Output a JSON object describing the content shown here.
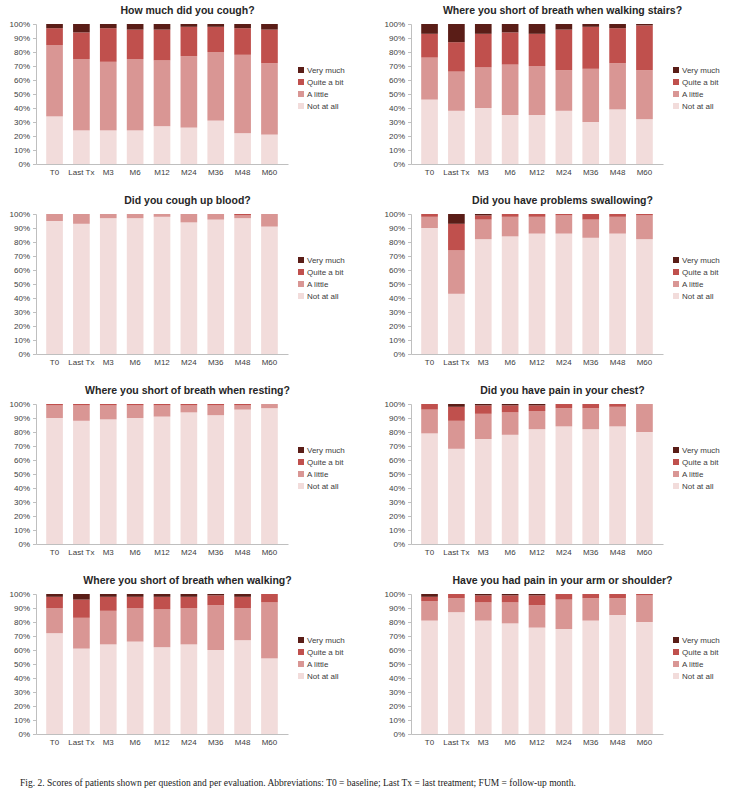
{
  "chart_data": [
    {
      "type": "bar",
      "stacked": true,
      "grid": false,
      "legend": "right",
      "title": "How much did you cough?",
      "categories": [
        "T0",
        "Last Tx",
        "M3",
        "M6",
        "M12",
        "M24",
        "M36",
        "M48",
        "M60"
      ],
      "ylim": [
        0,
        100
      ],
      "yticks": [
        {
          "value": 0,
          "label": "0%"
        },
        {
          "value": 10,
          "label": "10%"
        },
        {
          "value": 20,
          "label": "20%"
        },
        {
          "value": 30,
          "label": "30%"
        },
        {
          "value": 40,
          "label": "40%"
        },
        {
          "value": 50,
          "label": "50%"
        },
        {
          "value": 60,
          "label": "60%"
        },
        {
          "value": 70,
          "label": "70%"
        },
        {
          "value": 80,
          "label": "80%"
        },
        {
          "value": 90,
          "label": "90%"
        },
        {
          "value": 100,
          "label": "100%"
        }
      ],
      "series": [
        {
          "name": "Not at all",
          "color": "#f2dcdb",
          "values": [
            34,
            24,
            24,
            24,
            27,
            26,
            31,
            22,
            21
          ]
        },
        {
          "name": "A little",
          "color": "#d99694",
          "values": [
            51,
            51,
            49,
            51,
            47,
            51,
            49,
            56,
            51
          ]
        },
        {
          "name": "Quite a bit",
          "color": "#c0504d",
          "values": [
            12,
            19,
            24,
            21,
            22,
            21,
            18,
            19,
            24
          ]
        },
        {
          "name": "Very much",
          "color": "#5a1d17",
          "values": [
            3,
            6,
            3,
            4,
            4,
            2,
            2,
            3,
            4
          ]
        }
      ]
    },
    {
      "type": "bar",
      "stacked": true,
      "grid": false,
      "legend": "right",
      "title": "Where you short of breath when walking stairs?",
      "categories": [
        "T0",
        "Last Tx",
        "M3",
        "M6",
        "M12",
        "M24",
        "M36",
        "M48",
        "M60"
      ],
      "ylim": [
        0,
        100
      ],
      "yticks": [
        {
          "value": 0,
          "label": "0%"
        },
        {
          "value": 10,
          "label": "10%"
        },
        {
          "value": 20,
          "label": "20%"
        },
        {
          "value": 30,
          "label": "30%"
        },
        {
          "value": 40,
          "label": "40%"
        },
        {
          "value": 50,
          "label": "50%"
        },
        {
          "value": 60,
          "label": "60%"
        },
        {
          "value": 70,
          "label": "70%"
        },
        {
          "value": 80,
          "label": "80%"
        },
        {
          "value": 90,
          "label": "90%"
        },
        {
          "value": 100,
          "label": "100%"
        }
      ],
      "series": [
        {
          "name": "Not at all",
          "color": "#f2dcdb",
          "values": [
            46,
            38,
            40,
            35,
            35,
            38,
            30,
            39,
            32
          ]
        },
        {
          "name": "A little",
          "color": "#d99694",
          "values": [
            30,
            28,
            29,
            36,
            35,
            29,
            38,
            33,
            35
          ]
        },
        {
          "name": "Quite a bit",
          "color": "#c0504d",
          "values": [
            17,
            21,
            24,
            23,
            23,
            29,
            30,
            25,
            32
          ]
        },
        {
          "name": "Very much",
          "color": "#5a1d17",
          "values": [
            7,
            13,
            7,
            6,
            7,
            4,
            2,
            3,
            1
          ]
        }
      ]
    },
    {
      "type": "bar",
      "stacked": true,
      "grid": false,
      "legend": "right",
      "title": "Did you cough up blood?",
      "categories": [
        "T0",
        "Last Tx",
        "M3",
        "M6",
        "M12",
        "M24",
        "M36",
        "M48",
        "M60"
      ],
      "ylim": [
        0,
        100
      ],
      "yticks": [
        {
          "value": 0,
          "label": "0%"
        },
        {
          "value": 10,
          "label": "10%"
        },
        {
          "value": 20,
          "label": "20%"
        },
        {
          "value": 30,
          "label": "30%"
        },
        {
          "value": 40,
          "label": "40%"
        },
        {
          "value": 50,
          "label": "50%"
        },
        {
          "value": 60,
          "label": "60%"
        },
        {
          "value": 70,
          "label": "70%"
        },
        {
          "value": 80,
          "label": "80%"
        },
        {
          "value": 90,
          "label": "90%"
        },
        {
          "value": 100,
          "label": "100%"
        }
      ],
      "series": [
        {
          "name": "Not at all",
          "color": "#f2dcdb",
          "values": [
            95,
            93,
            97,
            97,
            98,
            94,
            96,
            97,
            91
          ]
        },
        {
          "name": "A little",
          "color": "#d99694",
          "values": [
            5,
            7,
            3,
            3,
            2,
            6,
            4,
            2,
            9
          ]
        },
        {
          "name": "Quite a bit",
          "color": "#c0504d",
          "values": [
            0,
            0,
            0,
            0,
            0,
            0,
            0,
            1,
            0
          ]
        },
        {
          "name": "Very much",
          "color": "#5a1d17",
          "values": [
            0,
            0,
            0,
            0,
            0,
            0,
            0,
            0,
            0
          ]
        }
      ]
    },
    {
      "type": "bar",
      "stacked": true,
      "grid": false,
      "legend": "right",
      "title": "Did you have problems swallowing?",
      "categories": [
        "T0",
        "Last Tx",
        "M3",
        "M6",
        "M12",
        "M24",
        "M36",
        "M48",
        "M60"
      ],
      "ylim": [
        0,
        100
      ],
      "yticks": [
        {
          "value": 0,
          "label": "0%"
        },
        {
          "value": 10,
          "label": "10%"
        },
        {
          "value": 20,
          "label": "20%"
        },
        {
          "value": 30,
          "label": "30%"
        },
        {
          "value": 40,
          "label": "40%"
        },
        {
          "value": 50,
          "label": "50%"
        },
        {
          "value": 60,
          "label": "60%"
        },
        {
          "value": 70,
          "label": "70%"
        },
        {
          "value": 80,
          "label": "80%"
        },
        {
          "value": 90,
          "label": "90%"
        },
        {
          "value": 100,
          "label": "100%"
        }
      ],
      "series": [
        {
          "name": "Not at all",
          "color": "#f2dcdb",
          "values": [
            90,
            43,
            82,
            84,
            86,
            86,
            83,
            86,
            82
          ]
        },
        {
          "name": "A little",
          "color": "#d99694",
          "values": [
            8,
            31,
            14,
            14,
            12,
            13,
            13,
            12,
            17
          ]
        },
        {
          "name": "Quite a bit",
          "color": "#c0504d",
          "values": [
            2,
            19,
            3,
            2,
            2,
            1,
            4,
            2,
            1
          ]
        },
        {
          "name": "Very much",
          "color": "#5a1d17",
          "values": [
            0,
            7,
            1,
            0,
            0,
            0,
            0,
            0,
            0
          ]
        }
      ]
    },
    {
      "type": "bar",
      "stacked": true,
      "grid": false,
      "legend": "right",
      "title": "Where you short of breath when resting?",
      "categories": [
        "T0",
        "Last Tx",
        "M3",
        "M6",
        "M12",
        "M24",
        "M36",
        "M48",
        "M60"
      ],
      "ylim": [
        0,
        100
      ],
      "yticks": [
        {
          "value": 0,
          "label": "0%"
        },
        {
          "value": 10,
          "label": "10%"
        },
        {
          "value": 20,
          "label": "20%"
        },
        {
          "value": 30,
          "label": "30%"
        },
        {
          "value": 40,
          "label": "40%"
        },
        {
          "value": 50,
          "label": "50%"
        },
        {
          "value": 60,
          "label": "60%"
        },
        {
          "value": 70,
          "label": "70%"
        },
        {
          "value": 80,
          "label": "80%"
        },
        {
          "value": 90,
          "label": "90%"
        },
        {
          "value": 100,
          "label": "100%"
        }
      ],
      "series": [
        {
          "name": "Not at all",
          "color": "#f2dcdb",
          "values": [
            90,
            88,
            89,
            90,
            91,
            94,
            92,
            96,
            97
          ]
        },
        {
          "name": "A little",
          "color": "#d99694",
          "values": [
            9,
            11,
            10,
            9,
            8,
            5,
            7,
            3,
            3
          ]
        },
        {
          "name": "Quite a bit",
          "color": "#c0504d",
          "values": [
            1,
            1,
            1,
            1,
            1,
            1,
            1,
            1,
            0
          ]
        },
        {
          "name": "Very much",
          "color": "#5a1d17",
          "values": [
            0,
            0,
            0,
            0,
            0,
            0,
            0,
            0,
            0
          ]
        }
      ]
    },
    {
      "type": "bar",
      "stacked": true,
      "grid": false,
      "legend": "right",
      "title": "Did you have pain in your chest?",
      "categories": [
        "T0",
        "Last Tx",
        "M3",
        "M6",
        "M12",
        "M24",
        "M36",
        "M48",
        "M60"
      ],
      "ylim": [
        0,
        100
      ],
      "yticks": [
        {
          "value": 0,
          "label": "0%"
        },
        {
          "value": 10,
          "label": "10%"
        },
        {
          "value": 20,
          "label": "20%"
        },
        {
          "value": 30,
          "label": "30%"
        },
        {
          "value": 40,
          "label": "40%"
        },
        {
          "value": 50,
          "label": "50%"
        },
        {
          "value": 60,
          "label": "60%"
        },
        {
          "value": 70,
          "label": "70%"
        },
        {
          "value": 80,
          "label": "80%"
        },
        {
          "value": 90,
          "label": "90%"
        },
        {
          "value": 100,
          "label": "100%"
        }
      ],
      "series": [
        {
          "name": "Not at all",
          "color": "#f2dcdb",
          "values": [
            79,
            68,
            75,
            78,
            82,
            84,
            82,
            84,
            80
          ]
        },
        {
          "name": "A little",
          "color": "#d99694",
          "values": [
            17,
            20,
            18,
            16,
            13,
            13,
            15,
            14,
            20
          ]
        },
        {
          "name": "Quite a bit",
          "color": "#c0504d",
          "values": [
            4,
            10,
            6,
            5,
            4,
            3,
            3,
            2,
            0
          ]
        },
        {
          "name": "Very much",
          "color": "#5a1d17",
          "values": [
            0,
            2,
            1,
            1,
            1,
            0,
            0,
            0,
            0
          ]
        }
      ]
    },
    {
      "type": "bar",
      "stacked": true,
      "grid": false,
      "legend": "right",
      "title": "Where you short of breath when walking?",
      "categories": [
        "T0",
        "Last Tx",
        "M3",
        "M6",
        "M12",
        "M24",
        "M36",
        "M48",
        "M60"
      ],
      "ylim": [
        0,
        100
      ],
      "yticks": [
        {
          "value": 0,
          "label": "0%"
        },
        {
          "value": 10,
          "label": "10%"
        },
        {
          "value": 20,
          "label": "20%"
        },
        {
          "value": 30,
          "label": "30%"
        },
        {
          "value": 40,
          "label": "40%"
        },
        {
          "value": 50,
          "label": "50%"
        },
        {
          "value": 60,
          "label": "60%"
        },
        {
          "value": 70,
          "label": "70%"
        },
        {
          "value": 80,
          "label": "80%"
        },
        {
          "value": 90,
          "label": "90%"
        },
        {
          "value": 100,
          "label": "100%"
        }
      ],
      "series": [
        {
          "name": "Not at all",
          "color": "#f2dcdb",
          "values": [
            72,
            61,
            64,
            66,
            62,
            64,
            60,
            67,
            54
          ]
        },
        {
          "name": "A little",
          "color": "#d99694",
          "values": [
            18,
            22,
            24,
            24,
            27,
            26,
            32,
            23,
            40
          ]
        },
        {
          "name": "Quite a bit",
          "color": "#c0504d",
          "values": [
            8,
            13,
            10,
            8,
            9,
            8,
            7,
            8,
            6
          ]
        },
        {
          "name": "Very much",
          "color": "#5a1d17",
          "values": [
            2,
            4,
            2,
            2,
            2,
            2,
            1,
            2,
            0
          ]
        }
      ]
    },
    {
      "type": "bar",
      "stacked": true,
      "grid": false,
      "legend": "right",
      "title": "Have you had pain in your arm or shoulder?",
      "categories": [
        "T0",
        "Last Tx",
        "M3",
        "M6",
        "M12",
        "M24",
        "M36",
        "M48",
        "M60"
      ],
      "ylim": [
        0,
        100
      ],
      "yticks": [
        {
          "value": 0,
          "label": "0%"
        },
        {
          "value": 10,
          "label": "10%"
        },
        {
          "value": 20,
          "label": "20%"
        },
        {
          "value": 30,
          "label": "30%"
        },
        {
          "value": 40,
          "label": "40%"
        },
        {
          "value": 50,
          "label": "50%"
        },
        {
          "value": 60,
          "label": "60%"
        },
        {
          "value": 70,
          "label": "70%"
        },
        {
          "value": 80,
          "label": "80%"
        },
        {
          "value": 90,
          "label": "90%"
        },
        {
          "value": 100,
          "label": "100%"
        }
      ],
      "series": [
        {
          "name": "Not at all",
          "color": "#f2dcdb",
          "values": [
            81,
            87,
            81,
            79,
            76,
            75,
            81,
            85,
            80
          ]
        },
        {
          "name": "A little",
          "color": "#d99694",
          "values": [
            14,
            10,
            13,
            15,
            16,
            21,
            16,
            12,
            19
          ]
        },
        {
          "name": "Quite a bit",
          "color": "#c0504d",
          "values": [
            3,
            3,
            5,
            5,
            7,
            4,
            3,
            3,
            1
          ]
        },
        {
          "name": "Very much",
          "color": "#5a1d17",
          "values": [
            2,
            0,
            1,
            1,
            1,
            0,
            0,
            0,
            0
          ]
        }
      ]
    }
  ],
  "caption": "Fig. 2. Scores of patients shown per question and per evaluation. Abbreviations: T0 = baseline; Last Tx = last treatment; FUM = follow-up month."
}
